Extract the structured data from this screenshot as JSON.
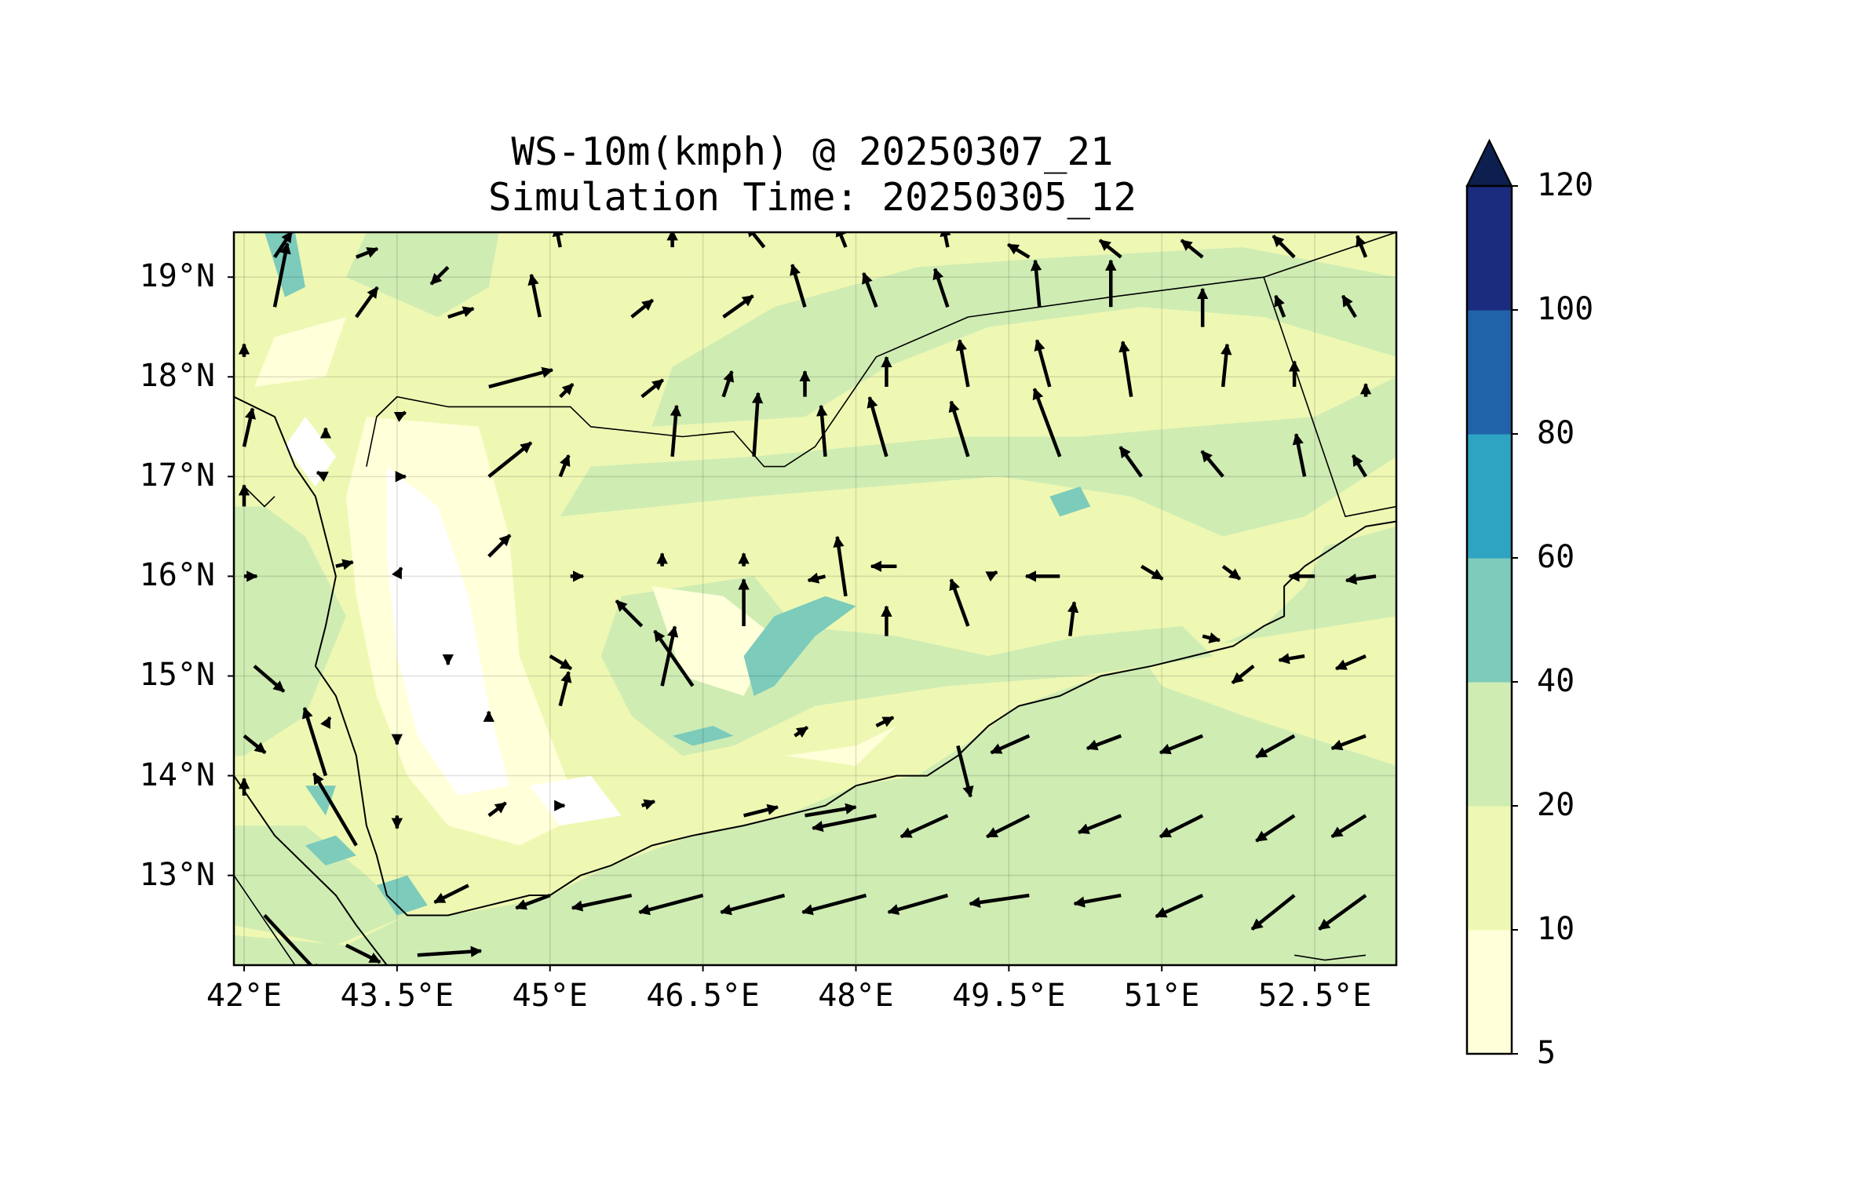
{
  "title": {
    "line1": "WS-10m(kmph) @ 20250307_21",
    "line2": "Simulation Time: 20250305_12"
  },
  "lat_ticks": [
    {
      "label": "19°N",
      "value": 19
    },
    {
      "label": "18°N",
      "value": 18
    },
    {
      "label": "17°N",
      "value": 17
    },
    {
      "label": "16°N",
      "value": 16
    },
    {
      "label": "15°N",
      "value": 15
    },
    {
      "label": "14°N",
      "value": 14
    },
    {
      "label": "13°N",
      "value": 13
    }
  ],
  "lon_ticks": [
    {
      "label": "42°E",
      "value": 42
    },
    {
      "label": "43.5°E",
      "value": 43.5
    },
    {
      "label": "45°E",
      "value": 45
    },
    {
      "label": "46.5°E",
      "value": 46.5
    },
    {
      "label": "48°E",
      "value": 48
    },
    {
      "label": "49.5°E",
      "value": 49.5
    },
    {
      "label": "51°E",
      "value": 51
    },
    {
      "label": "52.5°E",
      "value": 52.5
    }
  ],
  "extent": {
    "lon_min": 41.9,
    "lon_max": 53.3,
    "lat_min": 12.1,
    "lat_max": 19.45
  },
  "colorbar": {
    "levels": [
      {
        "label": "5",
        "value": 5
      },
      {
        "label": "10",
        "value": 10
      },
      {
        "label": "20",
        "value": 20
      },
      {
        "label": "40",
        "value": 40
      },
      {
        "label": "60",
        "value": 60
      },
      {
        "label": "80",
        "value": 80
      },
      {
        "label": "100",
        "value": 100
      },
      {
        "label": "120",
        "value": 120
      }
    ],
    "colors": [
      "#ffffd9",
      "#eef8b3",
      "#cfecb3",
      "#7ccbbb",
      "#2ea3c2",
      "#2163a9",
      "#1b2b7e"
    ],
    "extend_color": "#0c1f4e",
    "extend": "max"
  },
  "colors": {
    "land_base": "#eef8b3",
    "sea": "#cfecb3",
    "calm": "#ffffd9",
    "white": "#ffffff",
    "teal": "#7ccbbb",
    "arrow": "#000000",
    "coast": "#000000"
  },
  "vectors_note_units": "lon/lat, u/v in kmph",
  "vectors": [
    {
      "lon": 42.3,
      "lat": 18.7,
      "u": 6,
      "v": 30
    },
    {
      "lon": 43.1,
      "lat": 18.6,
      "u": 10,
      "v": 14
    },
    {
      "lon": 44.0,
      "lat": 18.6,
      "u": 12,
      "v": 4
    },
    {
      "lon": 44.9,
      "lat": 18.6,
      "u": -4,
      "v": 20
    },
    {
      "lon": 45.8,
      "lat": 18.6,
      "u": 10,
      "v": 8
    },
    {
      "lon": 46.7,
      "lat": 18.6,
      "u": 14,
      "v": 10
    },
    {
      "lon": 47.5,
      "lat": 18.7,
      "u": -6,
      "v": 20
    },
    {
      "lon": 48.2,
      "lat": 18.7,
      "u": -6,
      "v": 16
    },
    {
      "lon": 48.9,
      "lat": 18.7,
      "u": -6,
      "v": 18
    },
    {
      "lon": 49.8,
      "lat": 18.7,
      "u": -2,
      "v": 22
    },
    {
      "lon": 50.5,
      "lat": 18.7,
      "u": 0,
      "v": 22
    },
    {
      "lon": 51.4,
      "lat": 18.5,
      "u": 0,
      "v": 18
    },
    {
      "lon": 52.2,
      "lat": 18.6,
      "u": -4,
      "v": 10
    },
    {
      "lon": 52.9,
      "lat": 18.6,
      "u": -6,
      "v": 10
    },
    {
      "lon": 42.3,
      "lat": 19.2,
      "u": 8,
      "v": 12
    },
    {
      "lon": 43.1,
      "lat": 19.2,
      "u": 10,
      "v": 4
    },
    {
      "lon": 44.0,
      "lat": 19.1,
      "u": -8,
      "v": -8
    },
    {
      "lon": 45.1,
      "lat": 19.3,
      "u": -2,
      "v": 10
    },
    {
      "lon": 46.2,
      "lat": 19.3,
      "u": 0,
      "v": 8
    },
    {
      "lon": 47.1,
      "lat": 19.3,
      "u": -8,
      "v": 10
    },
    {
      "lon": 47.9,
      "lat": 19.3,
      "u": -4,
      "v": 10
    },
    {
      "lon": 48.9,
      "lat": 19.3,
      "u": -2,
      "v": 10
    },
    {
      "lon": 49.7,
      "lat": 19.2,
      "u": -10,
      "v": 6
    },
    {
      "lon": 50.6,
      "lat": 19.2,
      "u": -10,
      "v": 8
    },
    {
      "lon": 51.4,
      "lat": 19.2,
      "u": -10,
      "v": 8
    },
    {
      "lon": 52.3,
      "lat": 19.2,
      "u": -10,
      "v": 10
    },
    {
      "lon": 53.0,
      "lat": 19.2,
      "u": -4,
      "v": 10
    },
    {
      "lon": 42.0,
      "lat": 18.2,
      "u": 0,
      "v": 6
    },
    {
      "lon": 44.4,
      "lat": 17.9,
      "u": 30,
      "v": 8
    },
    {
      "lon": 45.1,
      "lat": 17.8,
      "u": 6,
      "v": 6
    },
    {
      "lon": 45.9,
      "lat": 17.8,
      "u": 10,
      "v": 8
    },
    {
      "lon": 46.7,
      "lat": 17.8,
      "u": 4,
      "v": 12
    },
    {
      "lon": 47.5,
      "lat": 17.8,
      "u": 0,
      "v": 12
    },
    {
      "lon": 48.3,
      "lat": 17.9,
      "u": 0,
      "v": 14
    },
    {
      "lon": 49.1,
      "lat": 17.9,
      "u": -4,
      "v": 22
    },
    {
      "lon": 49.9,
      "lat": 17.9,
      "u": -6,
      "v": 22
    },
    {
      "lon": 50.7,
      "lat": 17.8,
      "u": -4,
      "v": 26
    },
    {
      "lon": 51.6,
      "lat": 17.9,
      "u": 2,
      "v": 20
    },
    {
      "lon": 52.3,
      "lat": 17.9,
      "u": 0,
      "v": 12
    },
    {
      "lon": 53.0,
      "lat": 17.8,
      "u": 0,
      "v": 6
    },
    {
      "lon": 42.0,
      "lat": 17.3,
      "u": 4,
      "v": 18
    },
    {
      "lon": 42.8,
      "lat": 17.4,
      "u": 0,
      "v": 4
    },
    {
      "lon": 43.5,
      "lat": 17.6,
      "u": 4,
      "v": 2
    },
    {
      "lon": 44.4,
      "lat": 17.0,
      "u": 20,
      "v": 16
    },
    {
      "lon": 45.1,
      "lat": 17.0,
      "u": 4,
      "v": 10
    },
    {
      "lon": 46.2,
      "lat": 17.2,
      "u": 2,
      "v": 24
    },
    {
      "lon": 47.0,
      "lat": 17.2,
      "u": 2,
      "v": 30
    },
    {
      "lon": 47.7,
      "lat": 17.2,
      "u": -2,
      "v": 24
    },
    {
      "lon": 48.3,
      "lat": 17.2,
      "u": -8,
      "v": 28
    },
    {
      "lon": 49.1,
      "lat": 17.2,
      "u": -8,
      "v": 26
    },
    {
      "lon": 50.0,
      "lat": 17.2,
      "u": -12,
      "v": 32
    },
    {
      "lon": 50.8,
      "lat": 17.0,
      "u": -10,
      "v": 14
    },
    {
      "lon": 51.6,
      "lat": 17.0,
      "u": -10,
      "v": 12
    },
    {
      "lon": 52.4,
      "lat": 17.0,
      "u": -4,
      "v": 20
    },
    {
      "lon": 53.0,
      "lat": 17.0,
      "u": -6,
      "v": 10
    },
    {
      "lon": 42.0,
      "lat": 16.7,
      "u": 0,
      "v": 10
    },
    {
      "lon": 42.8,
      "lat": 17.0,
      "u": -4,
      "v": 2
    },
    {
      "lon": 43.5,
      "lat": 17.0,
      "u": 4,
      "v": 0
    },
    {
      "lon": 42.9,
      "lat": 16.1,
      "u": 8,
      "v": 2
    },
    {
      "lon": 43.5,
      "lat": 16.0,
      "u": 2,
      "v": 4
    },
    {
      "lon": 44.4,
      "lat": 16.2,
      "u": 10,
      "v": 10
    },
    {
      "lon": 45.2,
      "lat": 16.0,
      "u": 6,
      "v": 0
    },
    {
      "lon": 46.1,
      "lat": 16.1,
      "u": 0,
      "v": 6
    },
    {
      "lon": 46.9,
      "lat": 16.1,
      "u": 0,
      "v": 6
    },
    {
      "lon": 47.9,
      "lat": 15.8,
      "u": -4,
      "v": 28
    },
    {
      "lon": 47.7,
      "lat": 16.0,
      "u": -8,
      "v": -2
    },
    {
      "lon": 48.4,
      "lat": 16.1,
      "u": -12,
      "v": 0
    },
    {
      "lon": 49.3,
      "lat": 16.0,
      "u": 4,
      "v": 2
    },
    {
      "lon": 50.0,
      "lat": 16.0,
      "u": -16,
      "v": 0
    },
    {
      "lon": 50.8,
      "lat": 16.1,
      "u": 10,
      "v": -6
    },
    {
      "lon": 51.6,
      "lat": 16.1,
      "u": 8,
      "v": -6
    },
    {
      "lon": 52.5,
      "lat": 16.0,
      "u": -12,
      "v": 0
    },
    {
      "lon": 53.1,
      "lat": 16.0,
      "u": -14,
      "v": -2
    },
    {
      "lon": 42.0,
      "lat": 16.0,
      "u": 6,
      "v": 0
    },
    {
      "lon": 46.9,
      "lat": 15.5,
      "u": 0,
      "v": 22
    },
    {
      "lon": 45.9,
      "lat": 15.5,
      "u": -12,
      "v": 12
    },
    {
      "lon": 48.3,
      "lat": 15.4,
      "u": 0,
      "v": 14
    },
    {
      "lon": 49.1,
      "lat": 15.5,
      "u": -8,
      "v": 22
    },
    {
      "lon": 50.1,
      "lat": 15.4,
      "u": 2,
      "v": 16
    },
    {
      "lon": 51.4,
      "lat": 15.4,
      "u": 8,
      "v": -2
    },
    {
      "lon": 44.0,
      "lat": 15.2,
      "u": 0,
      "v": -4
    },
    {
      "lon": 45.0,
      "lat": 15.2,
      "u": 10,
      "v": -6
    },
    {
      "lon": 42.1,
      "lat": 15.1,
      "u": 14,
      "v": -12
    },
    {
      "lon": 52.4,
      "lat": 15.2,
      "u": -12,
      "v": -2
    },
    {
      "lon": 53.0,
      "lat": 15.2,
      "u": -14,
      "v": -6
    },
    {
      "lon": 51.9,
      "lat": 15.1,
      "u": -10,
      "v": -8
    },
    {
      "lon": 42.8,
      "lat": 14.5,
      "u": 2,
      "v": 4
    },
    {
      "lon": 42.0,
      "lat": 14.4,
      "u": 10,
      "v": -8
    },
    {
      "lon": 42.8,
      "lat": 14.0,
      "u": -10,
      "v": 32
    },
    {
      "lon": 43.5,
      "lat": 14.4,
      "u": 0,
      "v": -4
    },
    {
      "lon": 44.4,
      "lat": 14.6,
      "u": 0,
      "v": 2
    },
    {
      "lon": 45.1,
      "lat": 14.7,
      "u": 4,
      "v": 16
    },
    {
      "lon": 46.1,
      "lat": 14.9,
      "u": 6,
      "v": 28
    },
    {
      "lon": 46.4,
      "lat": 14.9,
      "u": -18,
      "v": 26
    },
    {
      "lon": 47.4,
      "lat": 14.4,
      "u": 6,
      "v": 4
    },
    {
      "lon": 48.2,
      "lat": 14.5,
      "u": 8,
      "v": 4
    },
    {
      "lon": 49.0,
      "lat": 14.3,
      "u": 6,
      "v": -24
    },
    {
      "lon": 49.7,
      "lat": 14.4,
      "u": -18,
      "v": -8
    },
    {
      "lon": 50.6,
      "lat": 14.4,
      "u": -16,
      "v": -6
    },
    {
      "lon": 51.4,
      "lat": 14.4,
      "u": -20,
      "v": -8
    },
    {
      "lon": 52.3,
      "lat": 14.4,
      "u": -18,
      "v": -10
    },
    {
      "lon": 53.0,
      "lat": 14.4,
      "u": -16,
      "v": -6
    },
    {
      "lon": 42.0,
      "lat": 13.8,
      "u": 0,
      "v": 8
    },
    {
      "lon": 43.1,
      "lat": 13.3,
      "u": -20,
      "v": 34
    },
    {
      "lon": 43.5,
      "lat": 13.6,
      "u": 0,
      "v": -6
    },
    {
      "lon": 44.4,
      "lat": 13.6,
      "u": 8,
      "v": 6
    },
    {
      "lon": 45.1,
      "lat": 13.7,
      "u": 2,
      "v": 0
    },
    {
      "lon": 45.9,
      "lat": 13.7,
      "u": 6,
      "v": 2
    },
    {
      "lon": 46.9,
      "lat": 13.6,
      "u": 16,
      "v": 4
    },
    {
      "lon": 47.5,
      "lat": 13.6,
      "u": 24,
      "v": 4
    },
    {
      "lon": 48.2,
      "lat": 13.6,
      "u": -30,
      "v": -6
    },
    {
      "lon": 48.9,
      "lat": 13.6,
      "u": -22,
      "v": -10
    },
    {
      "lon": 49.7,
      "lat": 13.6,
      "u": -20,
      "v": -10
    },
    {
      "lon": 50.6,
      "lat": 13.6,
      "u": -20,
      "v": -8
    },
    {
      "lon": 51.4,
      "lat": 13.6,
      "u": -20,
      "v": -10
    },
    {
      "lon": 52.3,
      "lat": 13.6,
      "u": -18,
      "v": -12
    },
    {
      "lon": 53.0,
      "lat": 13.6,
      "u": -16,
      "v": -10
    },
    {
      "lon": 42.0,
      "lat": 12.7,
      "u": 0,
      "v": 0
    },
    {
      "lon": 42.2,
      "lat": 12.6,
      "u": 26,
      "v": -28
    },
    {
      "lon": 43.0,
      "lat": 12.3,
      "u": 16,
      "v": -8
    },
    {
      "lon": 43.7,
      "lat": 12.2,
      "u": 30,
      "v": 2
    },
    {
      "lon": 44.2,
      "lat": 12.9,
      "u": -16,
      "v": -8
    },
    {
      "lon": 45.0,
      "lat": 12.8,
      "u": -16,
      "v": -6
    },
    {
      "lon": 45.8,
      "lat": 12.8,
      "u": -28,
      "v": -6
    },
    {
      "lon": 46.5,
      "lat": 12.8,
      "u": -30,
      "v": -8
    },
    {
      "lon": 47.3,
      "lat": 12.8,
      "u": -30,
      "v": -8
    },
    {
      "lon": 48.1,
      "lat": 12.8,
      "u": -30,
      "v": -8
    },
    {
      "lon": 48.9,
      "lat": 12.8,
      "u": -28,
      "v": -8
    },
    {
      "lon": 49.7,
      "lat": 12.8,
      "u": -28,
      "v": -4
    },
    {
      "lon": 50.6,
      "lat": 12.8,
      "u": -22,
      "v": -4
    },
    {
      "lon": 51.4,
      "lat": 12.8,
      "u": -22,
      "v": -10
    },
    {
      "lon": 52.3,
      "lat": 12.8,
      "u": -20,
      "v": -16
    },
    {
      "lon": 53.0,
      "lat": 12.8,
      "u": -22,
      "v": -16
    }
  ]
}
